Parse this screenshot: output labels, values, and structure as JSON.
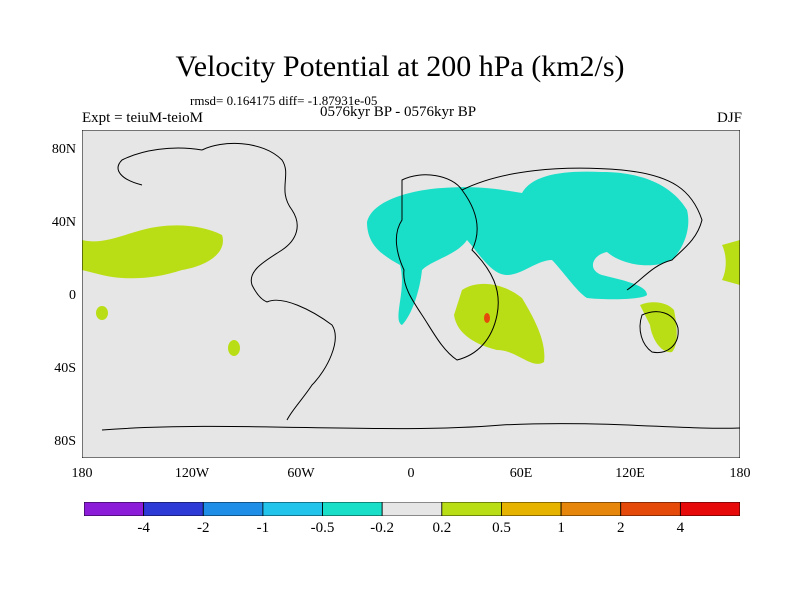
{
  "title": "Velocity Potential at 200 hPa (km2/s)",
  "stats": "rmsd= 0.164175 diff= -1.87931e-05",
  "left_label": "Expt = teiuM-teioM",
  "center_label": "0576kyr BP - 0576kyr BP",
  "right_label": "DJF",
  "y_ticks": [
    "80N",
    "40N",
    "0",
    "40S",
    "80S"
  ],
  "x_ticks": [
    "180",
    "120W",
    "60W",
    "0",
    "60E",
    "120E",
    "180"
  ],
  "colorbar": {
    "colors": [
      "#8c1cd8",
      "#2d3ad6",
      "#1f8ee6",
      "#22c4ec",
      "#19dfc8",
      "#e6e6e6",
      "#b9de15",
      "#e6b400",
      "#e6860a",
      "#e64a0a",
      "#e60a0a"
    ],
    "labels": [
      "-4",
      "-2",
      "-1",
      "-0.5",
      "-0.2",
      "0.2",
      "0.5",
      "1",
      "2",
      "4"
    ]
  },
  "colors": {
    "background": "#e6e6e6",
    "negative": "#19dfc8",
    "positive": "#b9de15",
    "max": "#e64a0a"
  }
}
